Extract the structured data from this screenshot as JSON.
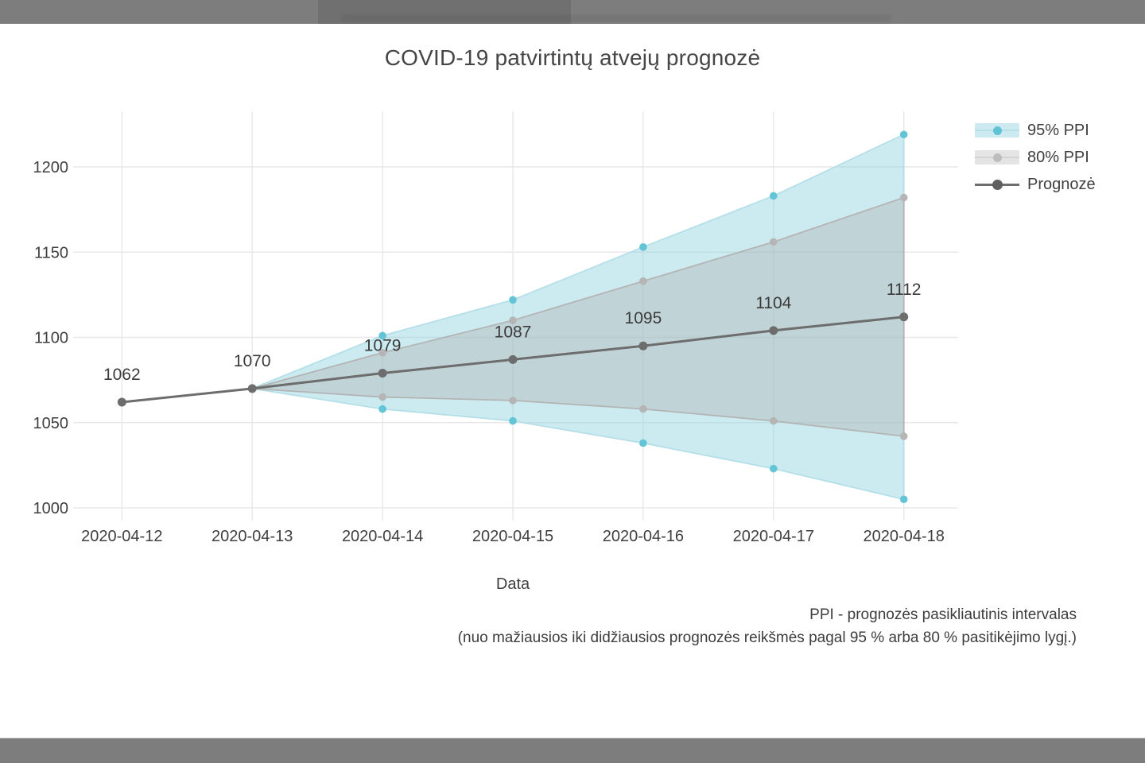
{
  "chart": {
    "legend": [
      {
        "label": "95% PPI",
        "type": "band",
        "band_fill": "#cdeaf0",
        "line": "#b7e0ea",
        "dot": "#5fc3d4"
      },
      {
        "label": "80% PPI",
        "type": "band",
        "band_fill": "#e4e4e4",
        "line": "#d3d3d3",
        "dot": "#bdbdbd"
      },
      {
        "label": "Prognozė",
        "type": "line",
        "band_fill": "",
        "line": "#6d6d6d",
        "dot": "#5f5f5f"
      }
    ],
    "footer": {
      "line1": "PPI - prognozės pasikliautinis intervalas",
      "line2": "(nuo mažiausios iki didžiausios prognozės reikšmės pagal 95 % arba 80 % pasitikėjimo lygį.)"
    }
  },
  "colors": {
    "grid": "#e8e8e8",
    "text": "#3f3f3f",
    "title": "#454545"
  },
  "chart_data": {
    "type": "line",
    "title": "COVID-19 patvirtintų atvejų prognozė",
    "xlabel": "Data",
    "ylabel": "",
    "x": [
      "2020-04-12",
      "2020-04-13",
      "2020-04-14",
      "2020-04-15",
      "2020-04-16",
      "2020-04-17",
      "2020-04-18"
    ],
    "yticks": [
      1000,
      1050,
      1100,
      1150,
      1200
    ],
    "ylim": [
      992,
      1233
    ],
    "grid": true,
    "legend_position": "top-right",
    "series": [
      {
        "name": "Prognozė",
        "kind": "line",
        "values": [
          1062,
          1070,
          1079,
          1087,
          1095,
          1104,
          1112
        ],
        "point_labels": [
          "1062",
          "1070",
          "1079",
          "1087",
          "1095",
          "1104",
          "1112"
        ],
        "color": "#6d6d6d"
      },
      {
        "name": "95% PPI",
        "kind": "band",
        "key": "95",
        "x_start_index": 1,
        "upper": [
          1070,
          1101,
          1122,
          1153,
          1183,
          1219
        ],
        "lower": [
          1070,
          1058,
          1051,
          1038,
          1023,
          1005
        ],
        "fill": "rgba(141,211,225,0.45)",
        "line": "#b4dfe9",
        "marker": "#62c4d5"
      },
      {
        "name": "80% PPI",
        "kind": "band",
        "key": "80",
        "x_start_index": 1,
        "upper": [
          1070,
          1091,
          1110,
          1133,
          1156,
          1182
        ],
        "lower": [
          1070,
          1065,
          1063,
          1058,
          1051,
          1042
        ],
        "fill": "rgba(173,173,173,0.38)",
        "line": "#b4b4b4",
        "marker": "#b5b5b5"
      }
    ]
  }
}
